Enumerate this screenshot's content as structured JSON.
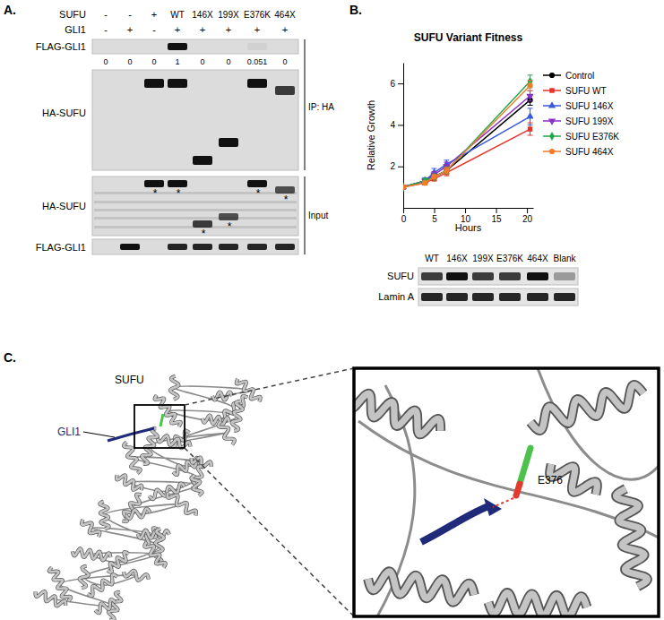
{
  "panel_a": {
    "label": "A.",
    "conditions": [
      {
        "label": "SUFU",
        "lanes": [
          "-",
          "-",
          "+",
          "WT",
          "146X",
          "199X",
          "E376K",
          "464X"
        ]
      },
      {
        "label": "GLI1",
        "lanes": [
          "-",
          "+",
          "-",
          "+",
          "+",
          "+",
          "+",
          "+"
        ]
      }
    ],
    "ip": {
      "label": "IP: HA",
      "flag_gli1": {
        "label": "FLAG-GLI1",
        "quantification": [
          0,
          0,
          0,
          1,
          0,
          0,
          0.051,
          0
        ]
      },
      "ha_sufu": {
        "label": "HA-SUFU",
        "bands": [
          0,
          0,
          1,
          1,
          1,
          1,
          1,
          0.8
        ]
      }
    },
    "input": {
      "label": "Input",
      "ha_sufu": {
        "label": "HA-SUFU",
        "bands": [
          0,
          0,
          1,
          1,
          0.8,
          0.7,
          1,
          0.7
        ],
        "asterisks": [
          null,
          null,
          "*",
          "*",
          "*",
          "*",
          "*",
          "*"
        ]
      },
      "flag_gli1": {
        "label": "FLAG-GLI1",
        "bands": [
          0,
          1,
          0,
          0.9,
          0.9,
          0.9,
          0.9,
          0.9
        ]
      }
    }
  },
  "chart_data": {
    "type": "line",
    "title": "SUFU Variant Fitness",
    "x_label": "Hours",
    "y_label": "Relative Growth",
    "x": [
      0,
      3.5,
      5,
      7,
      20.5
    ],
    "xlim": [
      0,
      21
    ],
    "xticks": [
      0,
      5,
      10,
      15,
      20
    ],
    "ylim": [
      0,
      7
    ],
    "yticks": [
      2,
      4,
      6
    ],
    "legend": "right",
    "series": [
      {
        "name": "Control",
        "color": "#000000",
        "marker": "circle",
        "values": [
          1,
          1.3,
          1.5,
          1.8,
          5.2
        ],
        "errors": [
          0,
          0.1,
          0.1,
          0.15,
          0.25
        ]
      },
      {
        "name": "SUFU WT",
        "color": "#e8322c",
        "marker": "square",
        "values": [
          1,
          1.2,
          1.4,
          1.7,
          3.8
        ],
        "errors": [
          0,
          0.1,
          0.1,
          0.15,
          0.3
        ]
      },
      {
        "name": "SUFU 146X",
        "color": "#3a5bd9",
        "marker": "triangle-up",
        "values": [
          1,
          1.3,
          1.7,
          2.1,
          4.4
        ],
        "errors": [
          0,
          0.15,
          0.2,
          0.2,
          0.4
        ]
      },
      {
        "name": "SUFU 199X",
        "color": "#8b2fc9",
        "marker": "triangle-down",
        "values": [
          1,
          1.3,
          1.6,
          2.0,
          5.4
        ],
        "errors": [
          0,
          0.1,
          0.15,
          0.2,
          0.25
        ]
      },
      {
        "name": "SUFU E376K",
        "color": "#22a84a",
        "marker": "diamond",
        "values": [
          1,
          1.3,
          1.5,
          1.8,
          6.1
        ],
        "errors": [
          0,
          0.1,
          0.1,
          0.15,
          0.3
        ]
      },
      {
        "name": "SUFU 464X",
        "color": "#f07c2a",
        "marker": "circle",
        "values": [
          1,
          1.2,
          1.5,
          1.8,
          5.9
        ],
        "errors": [
          0,
          0.1,
          0.1,
          0.15,
          0.25
        ]
      }
    ]
  },
  "panel_b_blot": {
    "label": "B.",
    "lanes": [
      "WT",
      "146X",
      "199X",
      "E376K",
      "464X",
      "Blank"
    ],
    "rows": [
      {
        "label": "SUFU",
        "bands": [
          0.8,
          1,
          0.8,
          0.8,
          1,
          0.35
        ]
      },
      {
        "label": "Lamin A",
        "bands": [
          0.9,
          0.9,
          0.9,
          0.9,
          0.9,
          0.9
        ]
      }
    ]
  },
  "panel_c": {
    "label": "C.",
    "protein_label": "SUFU",
    "peptide_label": "GLI1",
    "residue_label": "E376"
  }
}
